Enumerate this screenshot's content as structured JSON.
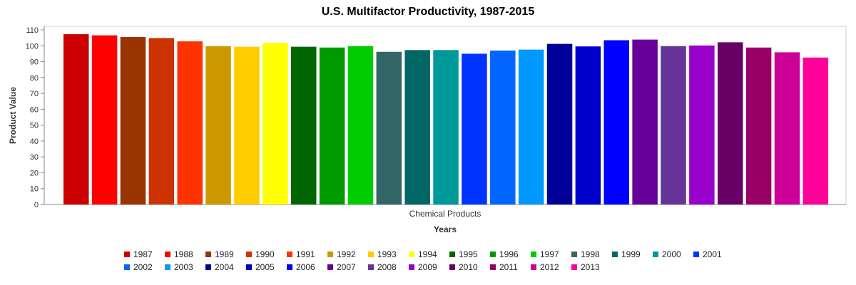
{
  "chart_data": {
    "type": "bar",
    "title": "U.S. Multifactor Productivity, 1987-2015",
    "xlabel": "Years",
    "ylabel": "Product Value",
    "categories": [
      "Chemical Products"
    ],
    "ylim": [
      0,
      110
    ],
    "yticks": [
      0,
      10,
      20,
      30,
      40,
      50,
      60,
      70,
      80,
      90,
      100,
      110
    ],
    "grid": false,
    "legend_position": "bottom",
    "series": [
      {
        "name": "1987",
        "values": [
          107.3
        ],
        "color": "#cc0000"
      },
      {
        "name": "1988",
        "values": [
          106.6
        ],
        "color": "#ff0000"
      },
      {
        "name": "1989",
        "values": [
          105.5
        ],
        "color": "#993300"
      },
      {
        "name": "1990",
        "values": [
          104.9
        ],
        "color": "#cc3300"
      },
      {
        "name": "1991",
        "values": [
          102.8
        ],
        "color": "#ff3300"
      },
      {
        "name": "1992",
        "values": [
          99.8
        ],
        "color": "#cc9900"
      },
      {
        "name": "1993",
        "values": [
          99.4
        ],
        "color": "#ffcc00"
      },
      {
        "name": "1994",
        "values": [
          101.9
        ],
        "color": "#ffff00"
      },
      {
        "name": "1995",
        "values": [
          99.4
        ],
        "color": "#006600"
      },
      {
        "name": "1996",
        "values": [
          98.9
        ],
        "color": "#009900"
      },
      {
        "name": "1997",
        "values": [
          99.8
        ],
        "color": "#00cc00"
      },
      {
        "name": "1998",
        "values": [
          96.2
        ],
        "color": "#336666"
      },
      {
        "name": "1999",
        "values": [
          97.3
        ],
        "color": "#006666"
      },
      {
        "name": "2000",
        "values": [
          97.3
        ],
        "color": "#009999"
      },
      {
        "name": "2001",
        "values": [
          95.0
        ],
        "color": "#0033ff"
      },
      {
        "name": "2002",
        "values": [
          97.0
        ],
        "color": "#0066ff"
      },
      {
        "name": "2003",
        "values": [
          97.6
        ],
        "color": "#0099ff"
      },
      {
        "name": "2004",
        "values": [
          101.2
        ],
        "color": "#000099"
      },
      {
        "name": "2005",
        "values": [
          99.6
        ],
        "color": "#0000cc"
      },
      {
        "name": "2006",
        "values": [
          103.5
        ],
        "color": "#0000ff"
      },
      {
        "name": "2007",
        "values": [
          103.9
        ],
        "color": "#660099"
      },
      {
        "name": "2008",
        "values": [
          99.8
        ],
        "color": "#663399"
      },
      {
        "name": "2009",
        "values": [
          100.2
        ],
        "color": "#9900cc"
      },
      {
        "name": "2010",
        "values": [
          102.2
        ],
        "color": "#660066"
      },
      {
        "name": "2011",
        "values": [
          98.9
        ],
        "color": "#990066"
      },
      {
        "name": "2012",
        "values": [
          95.9
        ],
        "color": "#cc0099"
      },
      {
        "name": "2013",
        "values": [
          92.6
        ],
        "color": "#ff0099"
      }
    ]
  }
}
